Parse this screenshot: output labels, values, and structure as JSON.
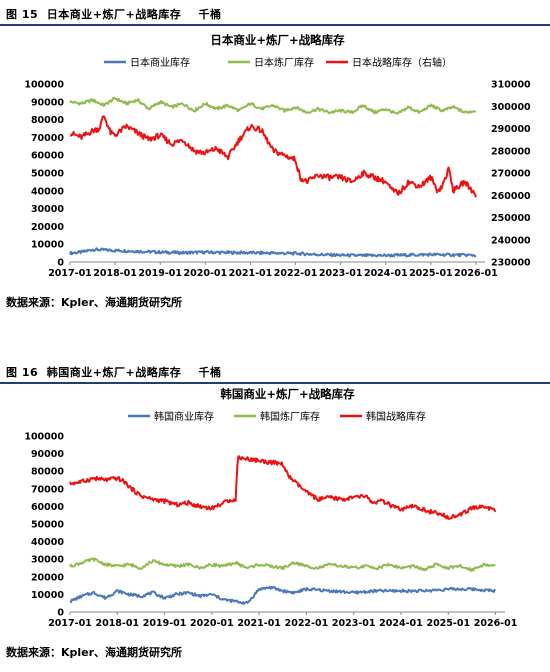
{
  "figure1": {
    "caption": "图 15  日本商业+炼厂+战略库存    千桶",
    "source": "数据来源：Kpler、海通期货研究所"
  },
  "figure2": {
    "caption": "图 16  韩国商业+炼厂+战略库存    千桶",
    "source": "数据来源：Kpler、海通期货研究所"
  },
  "chart_data": [
    {
      "type": "line",
      "title": "日本商业+炼厂+战略库存",
      "x_range": [
        "2017-01",
        "2026-01"
      ],
      "x_ticks": [
        "2017-01",
        "2018-01",
        "2019-01",
        "2020-01",
        "2021-01",
        "2022-01",
        "2023-01",
        "2024-01",
        "2025-01",
        "2026-01"
      ],
      "ylim": [
        0,
        100000
      ],
      "y_ticks": [
        "0",
        "10000",
        "20000",
        "30000",
        "40000",
        "50000",
        "60000",
        "70000",
        "80000",
        "90000",
        "100000"
      ],
      "y2lim": [
        230000,
        310000
      ],
      "y2_ticks": [
        "230000",
        "240000",
        "250000",
        "260000",
        "270000",
        "280000",
        "290000",
        "300000",
        "310000"
      ],
      "legend_position": "top-center",
      "grid": false,
      "series": [
        {
          "name": "日本商业库存",
          "color": "#4a78b8",
          "axis": "left",
          "x": [
            2017.0,
            2017.25,
            2017.5,
            2017.75,
            2018.0,
            2018.5,
            2019.0,
            2019.5,
            2020.0,
            2020.5,
            2021.0,
            2021.5,
            2022.0,
            2022.5,
            2023.0,
            2023.5,
            2024.0,
            2024.5,
            2025.0,
            2025.5,
            2026.0
          ],
          "values": [
            5000,
            5500,
            7000,
            6800,
            6500,
            6000,
            5500,
            5200,
            5500,
            5300,
            5200,
            5000,
            4800,
            4200,
            3800,
            3600,
            3700,
            3900,
            4200,
            4000,
            3800
          ]
        },
        {
          "name": "日本炼厂库存",
          "color": "#8fbc4e",
          "axis": "left",
          "x": [
            2017.0,
            2017.25,
            2017.5,
            2017.75,
            2018.0,
            2018.25,
            2018.5,
            2018.75,
            2019.0,
            2019.25,
            2019.5,
            2019.75,
            2020.0,
            2020.25,
            2020.5,
            2020.75,
            2021.0,
            2021.25,
            2021.5,
            2021.75,
            2022.0,
            2022.25,
            2022.5,
            2022.75,
            2023.0,
            2023.25,
            2023.5,
            2023.75,
            2024.0,
            2024.25,
            2024.5,
            2024.75,
            2025.0,
            2025.25,
            2025.5,
            2025.75,
            2026.0
          ],
          "values": [
            90000,
            89000,
            91000,
            88000,
            92000,
            89000,
            91000,
            86000,
            90000,
            87000,
            89000,
            85000,
            89000,
            86000,
            88000,
            85000,
            89000,
            86000,
            88000,
            85000,
            87000,
            84000,
            86000,
            84000,
            85000,
            84000,
            88000,
            84000,
            86000,
            83000,
            87000,
            84000,
            88000,
            85000,
            87000,
            84000,
            85000
          ]
        },
        {
          "name": "日本战略库存（右轴）",
          "color": "#ee1111",
          "axis": "right",
          "x": [
            2017.0,
            2017.25,
            2017.5,
            2017.65,
            2017.75,
            2017.9,
            2018.0,
            2018.25,
            2018.5,
            2018.75,
            2019.0,
            2019.25,
            2019.5,
            2019.75,
            2020.0,
            2020.25,
            2020.5,
            2020.75,
            2021.0,
            2021.25,
            2021.5,
            2021.75,
            2022.0,
            2022.1,
            2022.25,
            2022.5,
            2022.75,
            2023.0,
            2023.25,
            2023.5,
            2023.75,
            2024.0,
            2024.15,
            2024.3,
            2024.5,
            2024.75,
            2025.0,
            2025.15,
            2025.25,
            2025.4,
            2025.5,
            2025.75,
            2026.0
          ],
          "values": [
            288000,
            286000,
            289000,
            290000,
            296000,
            288000,
            287000,
            291000,
            288000,
            285000,
            287000,
            283000,
            285000,
            280000,
            279000,
            281000,
            277000,
            285000,
            291000,
            289000,
            280000,
            278000,
            276000,
            268000,
            266000,
            269000,
            268000,
            268000,
            266000,
            270000,
            268000,
            266000,
            262000,
            261000,
            266000,
            264000,
            268000,
            262000,
            264000,
            272000,
            262000,
            266000,
            260000
          ]
        }
      ]
    },
    {
      "type": "line",
      "title": "韩国商业+炼厂+战略库存",
      "x_range": [
        "2017-01",
        "2026-01"
      ],
      "x_ticks": [
        "2017-01",
        "2018-01",
        "2019-01",
        "2020-01",
        "2021-01",
        "2022-01",
        "2023-01",
        "2024-01",
        "2025-01",
        "2026-01"
      ],
      "ylim": [
        0,
        100000
      ],
      "y_ticks": [
        "0",
        "10000",
        "20000",
        "30000",
        "40000",
        "50000",
        "60000",
        "70000",
        "80000",
        "90000",
        "100000"
      ],
      "legend_position": "top-center",
      "grid": false,
      "series": [
        {
          "name": "韩国商业库存",
          "color": "#4a78b8",
          "x": [
            2017.0,
            2017.25,
            2017.5,
            2017.75,
            2018.0,
            2018.25,
            2018.5,
            2018.75,
            2019.0,
            2019.25,
            2019.5,
            2019.75,
            2020.0,
            2020.25,
            2020.5,
            2020.75,
            2021.0,
            2021.25,
            2021.5,
            2021.75,
            2022.0,
            2022.5,
            2023.0,
            2023.5,
            2024.0,
            2024.5,
            2025.0,
            2025.5,
            2026.0
          ],
          "values": [
            6000,
            9000,
            11000,
            8000,
            12000,
            10000,
            9000,
            11000,
            8000,
            10000,
            11000,
            9000,
            10000,
            7000,
            6000,
            5000,
            13000,
            14000,
            12000,
            11000,
            13000,
            12000,
            11000,
            12000,
            12000,
            12000,
            13000,
            13000,
            12000
          ]
        },
        {
          "name": "韩国炼厂库存",
          "color": "#8fbc4e",
          "x": [
            2017.0,
            2017.25,
            2017.5,
            2017.75,
            2018.0,
            2018.25,
            2018.5,
            2018.75,
            2019.0,
            2019.25,
            2019.5,
            2019.75,
            2020.0,
            2020.25,
            2020.5,
            2020.75,
            2021.0,
            2021.25,
            2021.5,
            2021.75,
            2022.0,
            2022.25,
            2022.5,
            2022.75,
            2023.0,
            2023.25,
            2023.5,
            2023.75,
            2024.0,
            2024.25,
            2024.5,
            2024.75,
            2025.0,
            2025.25,
            2025.5,
            2025.75,
            2026.0
          ],
          "values": [
            26000,
            28000,
            30000,
            27000,
            26000,
            27000,
            25000,
            29000,
            27000,
            26000,
            27000,
            25000,
            27000,
            26000,
            28000,
            25000,
            27000,
            26000,
            25000,
            28000,
            26000,
            25000,
            27000,
            26000,
            25000,
            26000,
            25000,
            27000,
            25000,
            26000,
            24000,
            27000,
            25000,
            26000,
            24000,
            27000,
            26000
          ]
        },
        {
          "name": "韩国战略库存",
          "color": "#ee1111",
          "x": [
            2017.0,
            2017.25,
            2017.5,
            2017.75,
            2018.0,
            2018.15,
            2018.3,
            2018.5,
            2018.75,
            2019.0,
            2019.25,
            2019.5,
            2019.75,
            2020.0,
            2020.25,
            2020.4,
            2020.5,
            2020.55,
            2020.75,
            2021.0,
            2021.25,
            2021.5,
            2021.6,
            2021.75,
            2022.0,
            2022.25,
            2022.5,
            2022.75,
            2023.0,
            2023.25,
            2023.4,
            2023.6,
            2023.75,
            2024.0,
            2024.25,
            2024.5,
            2024.75,
            2025.0,
            2025.25,
            2025.5,
            2025.75,
            2026.0
          ],
          "values": [
            73000,
            74000,
            76000,
            75000,
            76000,
            74000,
            70000,
            66000,
            64000,
            63000,
            61000,
            62000,
            60000,
            59000,
            62000,
            64000,
            63000,
            88000,
            87000,
            86000,
            85000,
            84000,
            78000,
            74000,
            68000,
            64000,
            65000,
            64000,
            65000,
            66000,
            62000,
            63000,
            61000,
            58000,
            60000,
            58000,
            56000,
            54000,
            55000,
            59000,
            60000,
            58000
          ]
        }
      ]
    }
  ]
}
